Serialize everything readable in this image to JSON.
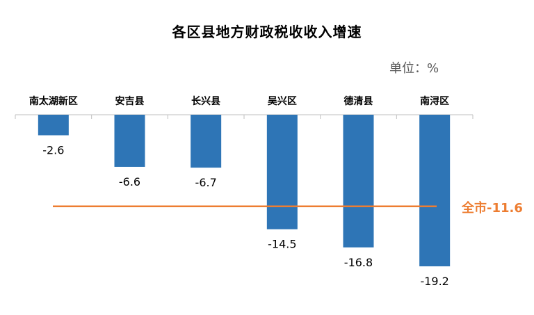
{
  "chart_data": {
    "type": "bar",
    "title": "各区县地方财政税收收入增速",
    "unit_label": "单位：%",
    "categories": [
      "南太湖新区",
      "安吉县",
      "长兴县",
      "吴兴区",
      "德清县",
      "南浔区"
    ],
    "values": [
      -2.6,
      -6.6,
      -6.7,
      -14.5,
      -16.8,
      -19.2
    ],
    "value_labels": [
      "-2.6",
      "-6.6",
      "-6.7",
      "-14.5",
      "-16.8",
      "-19.2"
    ],
    "reference_line": {
      "value": -11.6,
      "label": "全市-11.6"
    },
    "ylim": [
      -19.2,
      0
    ],
    "grid": false,
    "legend": "none",
    "colors": {
      "bar": "#2E75B6",
      "reference": "#ED7D31",
      "axis": "#BFBFBF"
    }
  }
}
